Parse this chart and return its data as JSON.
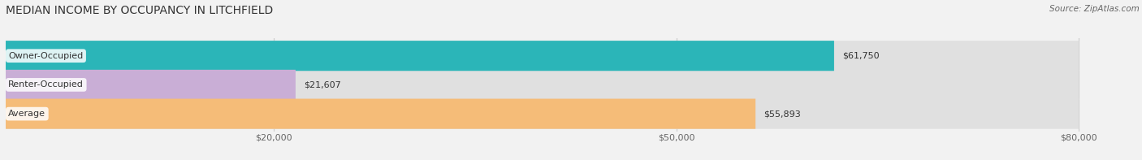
{
  "title": "MEDIAN INCOME BY OCCUPANCY IN LITCHFIELD",
  "source": "Source: ZipAtlas.com",
  "categories": [
    "Owner-Occupied",
    "Renter-Occupied",
    "Average"
  ],
  "values": [
    61750,
    21607,
    55893
  ],
  "labels": [
    "$61,750",
    "$21,607",
    "$55,893"
  ],
  "bar_colors": [
    "#2bb5b8",
    "#c9aed6",
    "#f5bc78"
  ],
  "bg_color": "#e8e8e8",
  "xlim_max": 83000,
  "bar_xlim_max": 80000,
  "xticks": [
    20000,
    50000,
    80000
  ],
  "xtick_labels": [
    "$20,000",
    "$50,000",
    "$80,000"
  ],
  "title_fontsize": 10,
  "source_fontsize": 7.5,
  "label_fontsize": 8,
  "bar_label_fontsize": 8,
  "bar_height": 0.52,
  "background_color": "#f2f2f2"
}
